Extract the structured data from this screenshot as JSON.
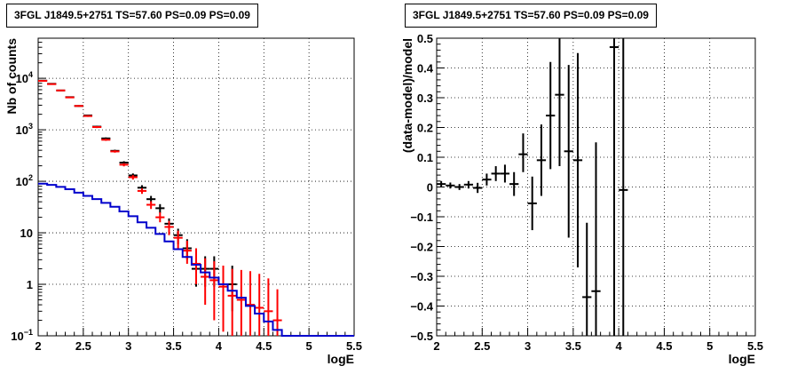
{
  "chart_data": [
    {
      "type": "scatter",
      "title": "3FGL J1849.5+2751 TS=57.60 PS=0.09 PS=0.09",
      "xlabel": "logE",
      "ylabel": "Nb of counts",
      "xlim": [
        2,
        5.5
      ],
      "ylim": [
        0.1,
        60000
      ],
      "ylog": true,
      "grid": true,
      "x_ticks": [
        "2",
        "2.5",
        "3",
        "3.5",
        "4",
        "4.5",
        "5",
        "5.5"
      ],
      "y_ticks": [
        {
          "value": 0.1,
          "label": "10",
          "exp": "−1"
        },
        {
          "value": 1,
          "label": "1",
          "exp": ""
        },
        {
          "value": 10,
          "label": "10",
          "exp": ""
        },
        {
          "value": 100,
          "label": "10",
          "exp": "2"
        },
        {
          "value": 1000,
          "label": "10",
          "exp": "3"
        },
        {
          "value": 10000,
          "label": "10",
          "exp": "4"
        }
      ],
      "series": [
        {
          "kind": "points",
          "color": "#000000",
          "points": [
            {
              "x": 2.05,
              "y": 9000,
              "lo": 8800,
              "hi": 9200
            },
            {
              "x": 2.15,
              "y": 7800,
              "lo": 7600,
              "hi": 8000
            },
            {
              "x": 2.25,
              "y": 5800,
              "lo": 5650,
              "hi": 5950
            },
            {
              "x": 2.35,
              "y": 4300,
              "lo": 4170,
              "hi": 4430
            },
            {
              "x": 2.45,
              "y": 2900,
              "lo": 2800,
              "hi": 3000
            },
            {
              "x": 2.55,
              "y": 1900,
              "lo": 1830,
              "hi": 1970
            },
            {
              "x": 2.65,
              "y": 1150,
              "lo": 1100,
              "hi": 1200
            },
            {
              "x": 2.75,
              "y": 680,
              "lo": 650,
              "hi": 710
            },
            {
              "x": 2.85,
              "y": 390,
              "lo": 370,
              "hi": 410
            },
            {
              "x": 2.95,
              "y": 230,
              "lo": 215,
              "hi": 245
            },
            {
              "x": 3.05,
              "y": 130,
              "lo": 118,
              "hi": 142
            },
            {
              "x": 3.15,
              "y": 75,
              "lo": 66,
              "hi": 84
            },
            {
              "x": 3.25,
              "y": 45,
              "lo": 38,
              "hi": 52
            },
            {
              "x": 3.35,
              "y": 30,
              "lo": 24,
              "hi": 36
            },
            {
              "x": 3.45,
              "y": 15,
              "lo": 11,
              "hi": 19
            },
            {
              "x": 3.55,
              "y": 9,
              "lo": 6,
              "hi": 12
            },
            {
              "x": 3.65,
              "y": 5,
              "lo": 3,
              "hi": 7.5
            },
            {
              "x": 3.75,
              "y": 2,
              "lo": 0.9,
              "hi": 3.5
            },
            {
              "x": 3.85,
              "y": 2,
              "lo": 0.9,
              "hi": 3.5
            },
            {
              "x": 3.95,
              "y": 2,
              "lo": 0.9,
              "hi": 3.5
            },
            {
              "x": 4.05,
              "y": 1,
              "lo": 0.3,
              "hi": 2.3
            },
            {
              "x": 4.15,
              "y": 1,
              "lo": 0.3,
              "hi": 2.3
            }
          ]
        },
        {
          "kind": "points",
          "color": "#ff0000",
          "points": [
            {
              "x": 2.05,
              "y": 8900,
              "lo": 8700,
              "hi": 9100
            },
            {
              "x": 2.15,
              "y": 7700,
              "lo": 7500,
              "hi": 7900
            },
            {
              "x": 2.25,
              "y": 5800,
              "lo": 5650,
              "hi": 5950
            },
            {
              "x": 2.35,
              "y": 4250,
              "lo": 4120,
              "hi": 4380
            },
            {
              "x": 2.45,
              "y": 2900,
              "lo": 2800,
              "hi": 3000
            },
            {
              "x": 2.55,
              "y": 1850,
              "lo": 1780,
              "hi": 1920
            },
            {
              "x": 2.65,
              "y": 1130,
              "lo": 1080,
              "hi": 1180
            },
            {
              "x": 2.75,
              "y": 640,
              "lo": 610,
              "hi": 670
            },
            {
              "x": 2.85,
              "y": 380,
              "lo": 360,
              "hi": 400
            },
            {
              "x": 2.95,
              "y": 210,
              "lo": 195,
              "hi": 225
            },
            {
              "x": 3.05,
              "y": 120,
              "lo": 108,
              "hi": 132
            },
            {
              "x": 3.15,
              "y": 65,
              "lo": 57,
              "hi": 73
            },
            {
              "x": 3.25,
              "y": 35,
              "lo": 29,
              "hi": 41
            },
            {
              "x": 3.35,
              "y": 20,
              "lo": 16,
              "hi": 25
            },
            {
              "x": 3.45,
              "y": 13,
              "lo": 9,
              "hi": 17
            },
            {
              "x": 3.55,
              "y": 8,
              "lo": 5,
              "hi": 11
            },
            {
              "x": 3.65,
              "y": 4.5,
              "lo": 2.5,
              "hi": 7
            },
            {
              "x": 3.75,
              "y": 2.5,
              "lo": 1,
              "hi": 5
            },
            {
              "x": 3.85,
              "y": 1.4,
              "lo": 0.4,
              "hi": 3.2
            },
            {
              "x": 3.95,
              "y": 1.2,
              "lo": 0.2,
              "hi": 2.8
            },
            {
              "x": 4.05,
              "y": 0.9,
              "lo": 0.12,
              "hi": 2.3
            },
            {
              "x": 4.15,
              "y": 0.6,
              "lo": 0.1,
              "hi": 2.0
            },
            {
              "x": 4.25,
              "y": 0.5,
              "lo": 0.1,
              "hi": 1.9
            },
            {
              "x": 4.35,
              "y": 0.4,
              "lo": 0.1,
              "hi": 1.8
            },
            {
              "x": 4.45,
              "y": 0.35,
              "lo": 0.1,
              "hi": 1.6
            },
            {
              "x": 4.55,
              "y": 0.3,
              "lo": 0.1,
              "hi": 1.3
            },
            {
              "x": 4.65,
              "y": 0.2,
              "lo": 0.1,
              "hi": 0.8
            }
          ]
        },
        {
          "kind": "step",
          "color": "#0000cc",
          "edges": [
            2.0,
            2.1,
            2.2,
            2.3,
            2.4,
            2.5,
            2.6,
            2.7,
            2.8,
            2.9,
            3.0,
            3.1,
            3.2,
            3.3,
            3.4,
            3.5,
            3.6,
            3.7,
            3.8,
            3.9,
            4.0,
            4.1,
            4.2,
            4.3,
            4.4,
            4.5,
            4.6,
            4.7,
            4.8,
            5.5
          ],
          "values": [
            90,
            85,
            78,
            70,
            60,
            52,
            45,
            38,
            32,
            26,
            21,
            16,
            12.5,
            9.5,
            6.8,
            4.8,
            3.4,
            2.4,
            1.7,
            1.35,
            1.0,
            0.75,
            0.55,
            0.38,
            0.27,
            0.19,
            0.13,
            0.1,
            0.1
          ]
        }
      ]
    },
    {
      "type": "scatter",
      "title": "3FGL J1849.5+2751 TS=57.60 PS=0.09 PS=0.09",
      "xlabel": "logE",
      "ylabel": "(data-model)/model",
      "xlim": [
        2,
        5.5
      ],
      "ylim": [
        -0.5,
        0.5
      ],
      "grid": true,
      "x_ticks": [
        "2",
        "2.5",
        "3",
        "3.5",
        "4",
        "4.5",
        "5",
        "5.5"
      ],
      "y_ticks": [
        "−0.5",
        "−0.4",
        "−0.3",
        "−0.2",
        "−0.1",
        "0",
        "0.1",
        "0.2",
        "0.3",
        "0.4",
        "0.5"
      ],
      "series": [
        {
          "kind": "points",
          "color": "#000000",
          "points": [
            {
              "x": 2.05,
              "y": 0.01,
              "lo": 0.0,
              "hi": 0.02
            },
            {
              "x": 2.15,
              "y": 0.005,
              "lo": -0.005,
              "hi": 0.015
            },
            {
              "x": 2.25,
              "y": 0.0,
              "lo": -0.01,
              "hi": 0.01
            },
            {
              "x": 2.35,
              "y": 0.008,
              "lo": -0.005,
              "hi": 0.02
            },
            {
              "x": 2.45,
              "y": -0.003,
              "lo": -0.02,
              "hi": 0.014
            },
            {
              "x": 2.55,
              "y": 0.025,
              "lo": 0.005,
              "hi": 0.045
            },
            {
              "x": 2.65,
              "y": 0.045,
              "lo": 0.02,
              "hi": 0.07
            },
            {
              "x": 2.75,
              "y": 0.045,
              "lo": 0.015,
              "hi": 0.075
            },
            {
              "x": 2.85,
              "y": 0.01,
              "lo": -0.03,
              "hi": 0.05
            },
            {
              "x": 2.95,
              "y": 0.11,
              "lo": 0.05,
              "hi": 0.18
            },
            {
              "x": 3.05,
              "y": -0.055,
              "lo": -0.145,
              "hi": 0.035
            },
            {
              "x": 3.15,
              "y": 0.09,
              "lo": -0.03,
              "hi": 0.21
            },
            {
              "x": 3.25,
              "y": 0.24,
              "lo": 0.06,
              "hi": 0.42
            },
            {
              "x": 3.35,
              "y": 0.31,
              "lo": 0.07,
              "hi": 0.55
            },
            {
              "x": 3.45,
              "y": 0.12,
              "lo": -0.17,
              "hi": 0.41
            },
            {
              "x": 3.55,
              "y": 0.09,
              "lo": -0.27,
              "hi": 0.45
            },
            {
              "x": 3.65,
              "y": -0.37,
              "lo": -0.6,
              "hi": -0.12
            },
            {
              "x": 3.75,
              "y": -0.35,
              "lo": -0.85,
              "hi": 0.15
            },
            {
              "x": 3.95,
              "y": 0.47,
              "lo": -0.6,
              "hi": 0.6
            },
            {
              "x": 4.05,
              "y": -0.01,
              "lo": -0.6,
              "hi": 0.6
            }
          ]
        }
      ]
    }
  ]
}
